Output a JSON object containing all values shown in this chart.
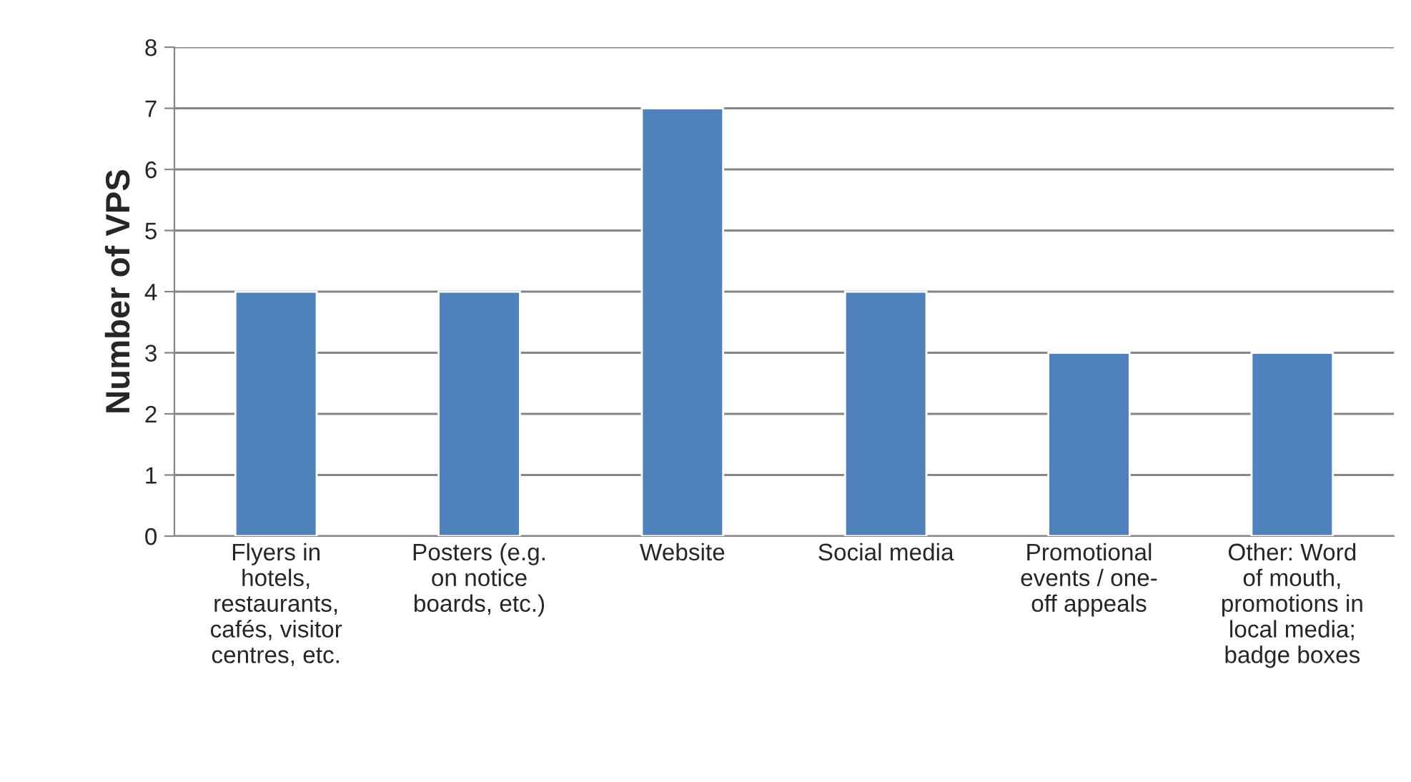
{
  "chart_data": {
    "type": "bar",
    "ylabel": "Number of VPS",
    "categories": [
      "Flyers in\nhotels,\nrestaurants,\ncafés, visitor\ncentres, etc.",
      "Posters (e.g.\non notice\nboards, etc.)",
      "Website",
      "Social media",
      "Promotional\nevents / one-\noff appeals",
      "Other: Word\nof mouth,\npromotions in\nlocal media;\nbadge boxes"
    ],
    "values": [
      4,
      4,
      7,
      4,
      3,
      3
    ],
    "color": "#4f81bd",
    "ylim": [
      0,
      8
    ],
    "yticks": [
      0,
      1,
      2,
      3,
      4,
      5,
      6,
      7,
      8
    ],
    "grid": "y",
    "legend": false
  }
}
